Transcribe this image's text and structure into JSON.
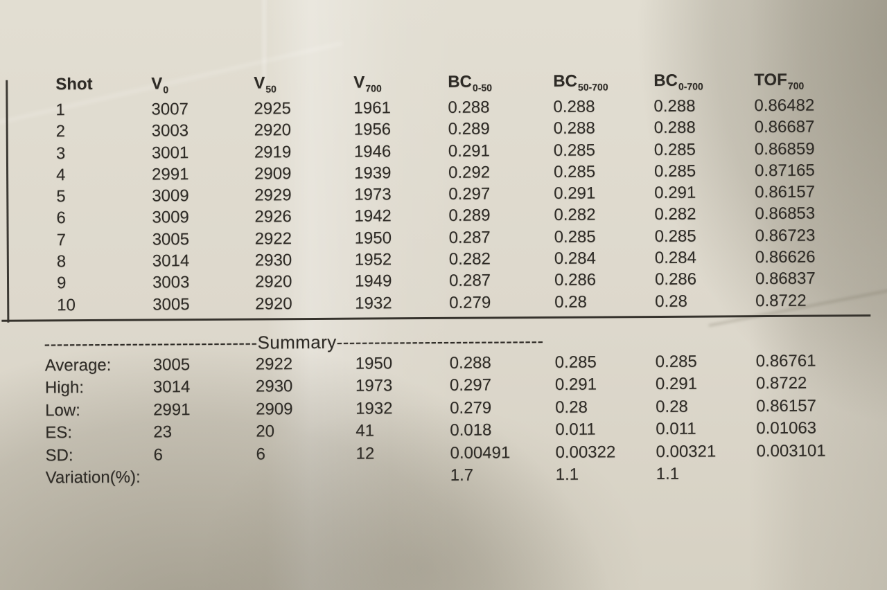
{
  "document": {
    "table": {
      "headers": [
        {
          "main": "Shot",
          "sub": ""
        },
        {
          "main": "V",
          "sub": "0"
        },
        {
          "main": "V",
          "sub": "50"
        },
        {
          "main": "V",
          "sub": "700"
        },
        {
          "main": "BC",
          "sub": "0-50"
        },
        {
          "main": "BC",
          "sub": "50-700"
        },
        {
          "main": "BC",
          "sub": "0-700"
        },
        {
          "main": "TOF",
          "sub": "700"
        }
      ],
      "rows": [
        [
          "1",
          "3007",
          "2925",
          "1961",
          "0.288",
          "0.288",
          "0.288",
          "0.86482"
        ],
        [
          "2",
          "3003",
          "2920",
          "1956",
          "0.289",
          "0.288",
          "0.288",
          "0.86687"
        ],
        [
          "3",
          "3001",
          "2919",
          "1946",
          "0.291",
          "0.285",
          "0.285",
          "0.86859"
        ],
        [
          "4",
          "2991",
          "2909",
          "1939",
          "0.292",
          "0.285",
          "0.285",
          "0.87165"
        ],
        [
          "5",
          "3009",
          "2929",
          "1973",
          "0.297",
          "0.291",
          "0.291",
          "0.86157"
        ],
        [
          "6",
          "3009",
          "2926",
          "1942",
          "0.289",
          "0.282",
          "0.282",
          "0.86853"
        ],
        [
          "7",
          "3005",
          "2922",
          "1950",
          "0.287",
          "0.285",
          "0.285",
          "0.86723"
        ],
        [
          "8",
          "3014",
          "2930",
          "1952",
          "0.282",
          "0.284",
          "0.284",
          "0.86626"
        ],
        [
          "9",
          "3003",
          "2920",
          "1949",
          "0.287",
          "0.286",
          "0.286",
          "0.86837"
        ],
        [
          "10",
          "3005",
          "2920",
          "1932",
          "0.279",
          "0.28",
          "0.28",
          "0.8722"
        ]
      ]
    },
    "summary": {
      "dashes_left": "----------------------------------",
      "title": "Summary",
      "dashes_right": "---------------------------------",
      "rows": [
        {
          "label": "Average:",
          "values": [
            "3005",
            "2922",
            "1950",
            "0.288",
            "0.285",
            "0.285",
            "0.86761"
          ]
        },
        {
          "label": "High:",
          "values": [
            "3014",
            "2930",
            "1973",
            "0.297",
            "0.291",
            "0.291",
            "0.8722"
          ]
        },
        {
          "label": "Low:",
          "values": [
            "2991",
            "2909",
            "1932",
            "0.279",
            "0.28",
            "0.28",
            "0.86157"
          ]
        },
        {
          "label": "ES:",
          "values": [
            "23",
            "20",
            "41",
            "0.018",
            "0.011",
            "0.011",
            "0.01063"
          ]
        },
        {
          "label": "SD:",
          "values": [
            "6",
            "6",
            "12",
            "0.00491",
            "0.00322",
            "0.00321",
            "0.003101"
          ]
        },
        {
          "label": "Variation(%):",
          "values": [
            "",
            "",
            "",
            "1.7",
            "1.1",
            "1.1",
            ""
          ]
        }
      ]
    }
  }
}
